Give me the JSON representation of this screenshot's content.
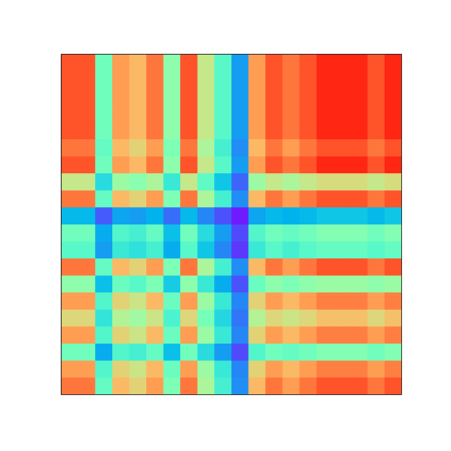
{
  "chart_data": {
    "type": "heatmap",
    "colormap": "rainbow",
    "vlim": [
      0.05,
      0.9
    ],
    "values": [
      [
        0.81,
        0.81,
        0.45,
        0.72,
        0.68,
        0.77,
        0.5,
        0.81,
        0.59,
        0.41,
        0.23,
        0.72,
        0.81,
        0.77,
        0.81,
        0.86,
        0.86,
        0.86,
        0.81,
        0.86
      ],
      [
        0.81,
        0.81,
        0.45,
        0.72,
        0.68,
        0.77,
        0.5,
        0.81,
        0.59,
        0.41,
        0.23,
        0.72,
        0.81,
        0.77,
        0.81,
        0.86,
        0.86,
        0.86,
        0.81,
        0.86
      ],
      [
        0.81,
        0.81,
        0.45,
        0.72,
        0.68,
        0.77,
        0.5,
        0.81,
        0.59,
        0.41,
        0.23,
        0.72,
        0.81,
        0.77,
        0.81,
        0.86,
        0.86,
        0.86,
        0.81,
        0.86
      ],
      [
        0.81,
        0.81,
        0.45,
        0.72,
        0.68,
        0.77,
        0.5,
        0.81,
        0.59,
        0.41,
        0.23,
        0.72,
        0.81,
        0.77,
        0.81,
        0.86,
        0.86,
        0.86,
        0.81,
        0.86
      ],
      [
        0.81,
        0.81,
        0.45,
        0.72,
        0.68,
        0.77,
        0.5,
        0.81,
        0.59,
        0.41,
        0.23,
        0.72,
        0.81,
        0.77,
        0.81,
        0.86,
        0.86,
        0.86,
        0.81,
        0.86
      ],
      [
        0.77,
        0.77,
        0.43,
        0.68,
        0.64,
        0.72,
        0.47,
        0.77,
        0.55,
        0.38,
        0.21,
        0.68,
        0.77,
        0.72,
        0.77,
        0.81,
        0.81,
        0.81,
        0.77,
        0.81
      ],
      [
        0.81,
        0.81,
        0.45,
        0.72,
        0.68,
        0.77,
        0.5,
        0.81,
        0.59,
        0.41,
        0.23,
        0.72,
        0.81,
        0.77,
        0.81,
        0.86,
        0.86,
        0.86,
        0.81,
        0.86
      ],
      [
        0.59,
        0.59,
        0.33,
        0.52,
        0.49,
        0.55,
        0.36,
        0.59,
        0.42,
        0.29,
        0.16,
        0.52,
        0.59,
        0.55,
        0.59,
        0.62,
        0.62,
        0.62,
        0.59,
        0.62
      ],
      [
        0.77,
        0.77,
        0.43,
        0.68,
        0.64,
        0.72,
        0.47,
        0.77,
        0.55,
        0.38,
        0.21,
        0.68,
        0.77,
        0.72,
        0.77,
        0.81,
        0.81,
        0.81,
        0.77,
        0.81
      ],
      [
        0.27,
        0.27,
        0.15,
        0.24,
        0.23,
        0.26,
        0.17,
        0.27,
        0.2,
        0.14,
        0.08,
        0.24,
        0.27,
        0.26,
        0.27,
        0.29,
        0.29,
        0.29,
        0.27,
        0.29
      ],
      [
        0.45,
        0.45,
        0.25,
        0.4,
        0.38,
        0.43,
        0.28,
        0.45,
        0.33,
        0.23,
        0.13,
        0.4,
        0.45,
        0.43,
        0.45,
        0.48,
        0.48,
        0.48,
        0.45,
        0.48
      ],
      [
        0.41,
        0.41,
        0.23,
        0.36,
        0.34,
        0.38,
        0.25,
        0.41,
        0.29,
        0.2,
        0.11,
        0.36,
        0.41,
        0.38,
        0.41,
        0.43,
        0.43,
        0.43,
        0.41,
        0.43
      ],
      [
        0.77,
        0.77,
        0.43,
        0.68,
        0.64,
        0.72,
        0.47,
        0.77,
        0.55,
        0.38,
        0.21,
        0.68,
        0.77,
        0.72,
        0.77,
        0.81,
        0.81,
        0.81,
        0.77,
        0.81
      ],
      [
        0.5,
        0.5,
        0.28,
        0.44,
        0.41,
        0.47,
        0.3,
        0.5,
        0.36,
        0.25,
        0.14,
        0.44,
        0.5,
        0.47,
        0.5,
        0.52,
        0.52,
        0.52,
        0.5,
        0.52
      ],
      [
        0.72,
        0.72,
        0.4,
        0.64,
        0.6,
        0.68,
        0.44,
        0.72,
        0.52,
        0.36,
        0.2,
        0.64,
        0.72,
        0.68,
        0.72,
        0.76,
        0.76,
        0.76,
        0.72,
        0.76
      ],
      [
        0.63,
        0.63,
        0.35,
        0.56,
        0.53,
        0.6,
        0.39,
        0.63,
        0.46,
        0.32,
        0.18,
        0.56,
        0.63,
        0.6,
        0.63,
        0.67,
        0.67,
        0.67,
        0.63,
        0.67
      ],
      [
        0.72,
        0.72,
        0.4,
        0.64,
        0.6,
        0.68,
        0.44,
        0.72,
        0.52,
        0.36,
        0.2,
        0.64,
        0.72,
        0.68,
        0.72,
        0.76,
        0.76,
        0.76,
        0.72,
        0.76
      ],
      [
        0.45,
        0.45,
        0.25,
        0.4,
        0.38,
        0.43,
        0.28,
        0.45,
        0.33,
        0.23,
        0.13,
        0.4,
        0.45,
        0.43,
        0.45,
        0.48,
        0.48,
        0.48,
        0.45,
        0.48
      ],
      [
        0.72,
        0.72,
        0.4,
        0.64,
        0.6,
        0.68,
        0.44,
        0.72,
        0.52,
        0.36,
        0.2,
        0.64,
        0.72,
        0.68,
        0.72,
        0.76,
        0.76,
        0.76,
        0.72,
        0.76
      ],
      [
        0.77,
        0.77,
        0.43,
        0.68,
        0.64,
        0.72,
        0.47,
        0.77,
        0.55,
        0.38,
        0.21,
        0.68,
        0.77,
        0.72,
        0.77,
        0.81,
        0.81,
        0.81,
        0.77,
        0.81
      ]
    ]
  }
}
